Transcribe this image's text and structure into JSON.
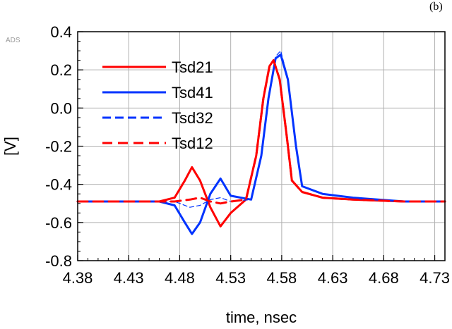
{
  "chart_data": {
    "type": "line",
    "panel_label": "(b)",
    "corner_label": "ADS",
    "xlabel": "time, nsec",
    "ylabel": "[V]",
    "xlim": [
      4.38,
      4.74
    ],
    "ylim": [
      -0.8,
      0.4
    ],
    "x_ticks": [
      "4.38",
      "4.43",
      "4.48",
      "4.53",
      "4.58",
      "4.63",
      "4.68",
      "4.73"
    ],
    "y_ticks": [
      "0.4",
      "0.2",
      "0.0",
      "-0.2",
      "-0.4",
      "-0.6",
      "-0.8"
    ],
    "grid": true,
    "legend_position": "top-left",
    "series": [
      {
        "name": "Tsd21",
        "color": "#ff0000",
        "style": "solid",
        "width": 3,
        "x": [
          4.38,
          4.46,
          4.475,
          4.485,
          4.492,
          4.5,
          4.51,
          4.52,
          4.53,
          4.545,
          4.555,
          4.562,
          4.568,
          4.572,
          4.578,
          4.585,
          4.59,
          4.6,
          4.62,
          4.65,
          4.7,
          4.74
        ],
        "y": [
          -0.49,
          -0.49,
          -0.47,
          -0.38,
          -0.31,
          -0.38,
          -0.52,
          -0.62,
          -0.55,
          -0.48,
          -0.25,
          0.05,
          0.22,
          0.25,
          0.15,
          -0.15,
          -0.38,
          -0.44,
          -0.47,
          -0.48,
          -0.49,
          -0.49
        ]
      },
      {
        "name": "Tsd41",
        "color": "#0033ff",
        "style": "solid",
        "width": 3,
        "x": [
          4.38,
          4.46,
          4.475,
          4.485,
          4.492,
          4.5,
          4.51,
          4.52,
          4.53,
          4.55,
          4.56,
          4.567,
          4.574,
          4.579,
          4.586,
          4.594,
          4.6,
          4.62,
          4.65,
          4.7,
          4.74
        ],
        "y": [
          -0.49,
          -0.49,
          -0.51,
          -0.6,
          -0.66,
          -0.6,
          -0.45,
          -0.37,
          -0.46,
          -0.48,
          -0.25,
          0.05,
          0.26,
          0.28,
          0.15,
          -0.2,
          -0.41,
          -0.45,
          -0.47,
          -0.49,
          -0.49
        ]
      },
      {
        "name": "Tsd32",
        "color": "#0033ff",
        "style": "dashed",
        "width": 1.2,
        "x": [
          4.38,
          4.46,
          4.475,
          4.49,
          4.5,
          4.51,
          4.52,
          4.53,
          4.55,
          4.56,
          4.567,
          4.574,
          4.579,
          4.586,
          4.594,
          4.6,
          4.62,
          4.65,
          4.7,
          4.74
        ],
        "y": [
          -0.49,
          -0.49,
          -0.49,
          -0.52,
          -0.51,
          -0.48,
          -0.47,
          -0.49,
          -0.48,
          -0.25,
          0.05,
          0.27,
          0.3,
          0.16,
          -0.2,
          -0.41,
          -0.45,
          -0.47,
          -0.49,
          -0.49
        ]
      },
      {
        "name": "Tsd12",
        "color": "#ff0000",
        "style": "dashed",
        "width": 3,
        "x": [
          4.38,
          4.46,
          4.475,
          4.49,
          4.5,
          4.51,
          4.52,
          4.53,
          4.545,
          4.555,
          4.562,
          4.568,
          4.572,
          4.578,
          4.585,
          4.59,
          4.6,
          4.62,
          4.65,
          4.7,
          4.74
        ],
        "y": [
          -0.49,
          -0.49,
          -0.49,
          -0.48,
          -0.47,
          -0.49,
          -0.5,
          -0.49,
          -0.48,
          -0.25,
          0.05,
          0.22,
          0.25,
          0.15,
          -0.15,
          -0.38,
          -0.44,
          -0.47,
          -0.48,
          -0.49,
          -0.49
        ]
      }
    ]
  }
}
